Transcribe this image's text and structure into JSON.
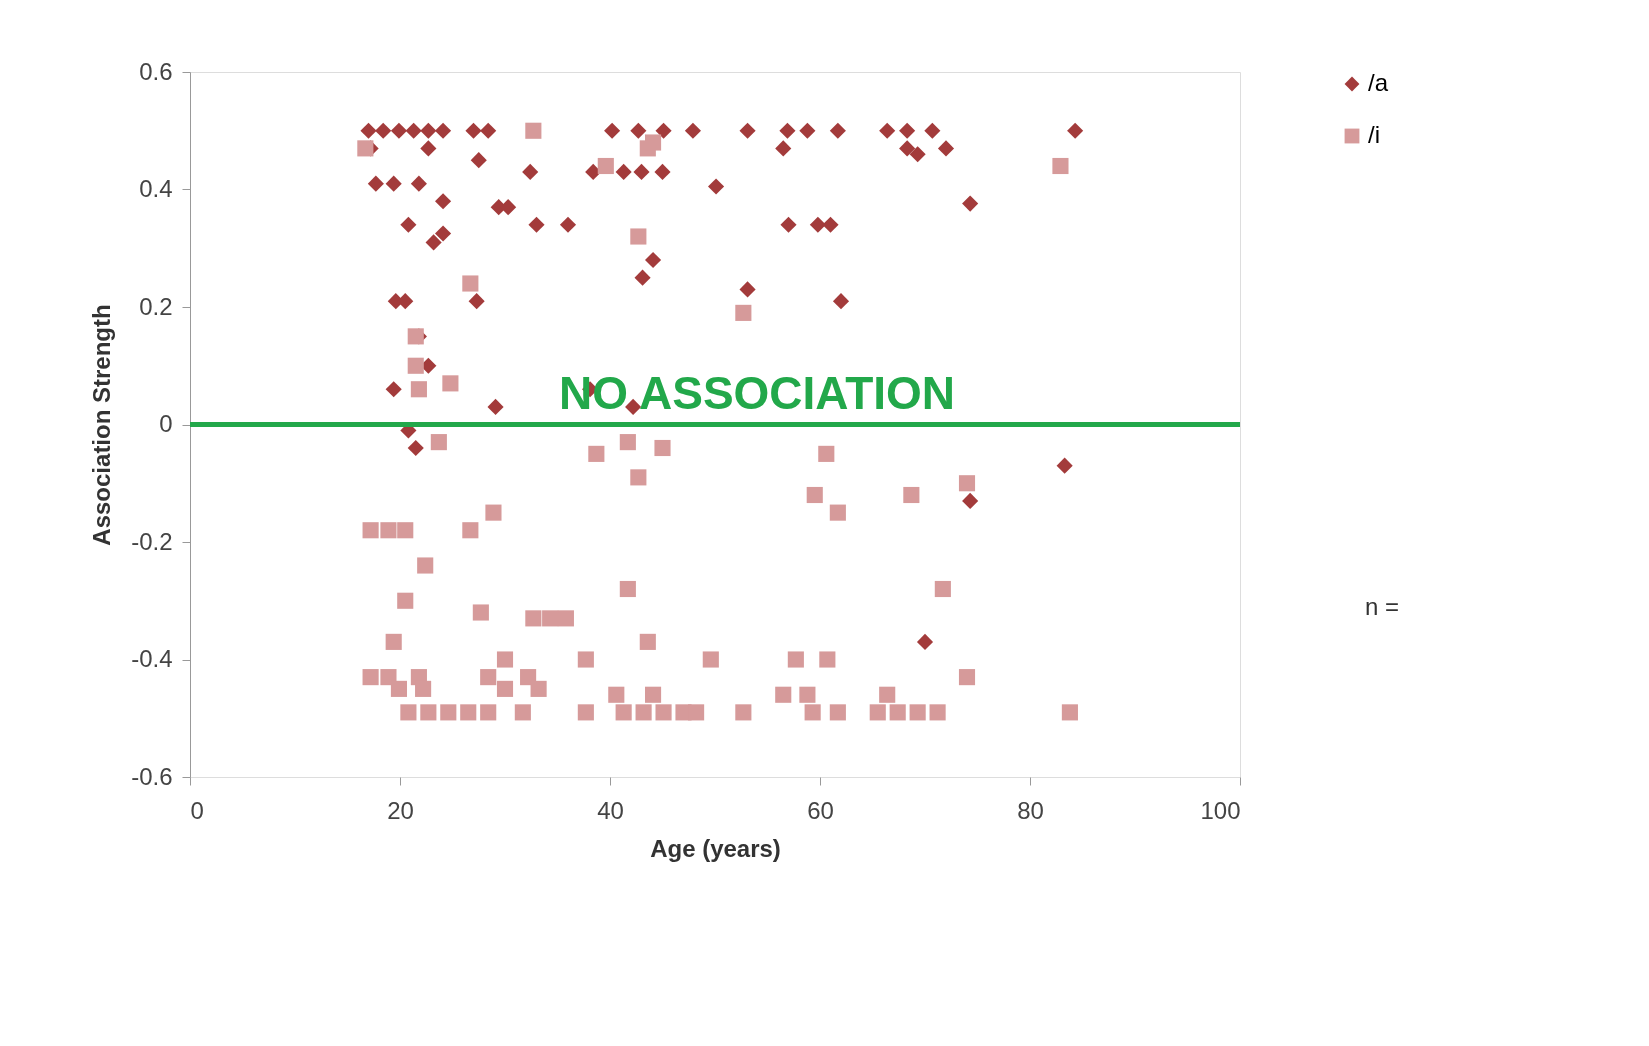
{
  "chart_data": {
    "type": "scatter",
    "xlabel": "Age (years)",
    "ylabel": "Association Strength",
    "xlim": [
      0,
      100
    ],
    "xticks": [
      0,
      20,
      40,
      60,
      80,
      100
    ],
    "ylim": [
      -0.6,
      0.6
    ],
    "yticks": [
      -0.6,
      -0.4,
      -0.2,
      0,
      0.2,
      0.4,
      0.6
    ],
    "grid": false,
    "legend": "right",
    "annotations": [
      "n ="
    ],
    "ref_lines": [
      {
        "axis": "y",
        "value": 0,
        "label": "NO ASSOCIATION",
        "color": "#22a84a"
      }
    ],
    "series": [
      {
        "name": "/a",
        "color": "#a33b3b",
        "marker": "diamond",
        "x": [
          17.0,
          18.4,
          19.9,
          21.3,
          22.7,
          24.1,
          27.0,
          28.4,
          40.2,
          42.7,
          45.1,
          47.9,
          53.1,
          56.9,
          58.8,
          61.7,
          66.4,
          68.3,
          70.7,
          84.3,
          17.2,
          22.7,
          27.5,
          32.4,
          38.4,
          41.3,
          43.0,
          45.0,
          56.5,
          68.3,
          72.0,
          69.3,
          17.7,
          19.4,
          21.8,
          50.1,
          74.3,
          24.1,
          29.4,
          30.3,
          20.8,
          24.1,
          23.2,
          33.0,
          36.0,
          57.0,
          59.8,
          61.0,
          44.1,
          43.1,
          53.1,
          19.6,
          20.5,
          27.3,
          62.0,
          21.8,
          22.7,
          19.4,
          38.1,
          29.1,
          42.2,
          20.8,
          21.5,
          83.3,
          74.3,
          70.0
        ],
        "values": [
          0.5,
          0.5,
          0.5,
          0.5,
          0.5,
          0.5,
          0.5,
          0.5,
          0.5,
          0.5,
          0.5,
          0.5,
          0.5,
          0.5,
          0.5,
          0.5,
          0.5,
          0.5,
          0.5,
          0.5,
          0.47,
          0.47,
          0.45,
          0.43,
          0.43,
          0.43,
          0.43,
          0.43,
          0.47,
          0.47,
          0.47,
          0.46,
          0.41,
          0.41,
          0.41,
          0.405,
          0.376,
          0.38,
          0.37,
          0.37,
          0.34,
          0.325,
          0.31,
          0.34,
          0.34,
          0.34,
          0.34,
          0.34,
          0.28,
          0.25,
          0.23,
          0.21,
          0.21,
          0.21,
          0.21,
          0.15,
          0.1,
          0.06,
          0.06,
          0.03,
          0.03,
          -0.01,
          -0.04,
          -0.07,
          -0.13,
          -0.37
        ]
      },
      {
        "name": "/i",
        "color": "#d69a9a",
        "marker": "square",
        "x": [
          32.7,
          16.7,
          43.6,
          44.1,
          39.6,
          82.9,
          42.7,
          26.7,
          52.7,
          21.5,
          21.5,
          24.8,
          21.8,
          23.7,
          41.7,
          38.7,
          60.6,
          42.7,
          45.0,
          74.0,
          59.5,
          68.7,
          61.7,
          28.9,
          26.7,
          17.2,
          18.9,
          20.5,
          22.4,
          41.7,
          71.7,
          20.5,
          27.7,
          32.7,
          34.3,
          35.8,
          19.4,
          43.6,
          30.0,
          37.7,
          49.6,
          57.7,
          60.7,
          17.2,
          18.9,
          21.8,
          28.4,
          32.2,
          74.0,
          19.9,
          22.2,
          30.0,
          33.2,
          40.6,
          44.1,
          56.5,
          58.8,
          20.8,
          22.7,
          24.6,
          26.5,
          28.4,
          31.7,
          37.7,
          41.3,
          43.2,
          45.1,
          47.0,
          48.2,
          52.7,
          59.3,
          61.7,
          65.5,
          67.4,
          69.3,
          71.2,
          83.8,
          66.4
        ],
        "values": [
          0.5,
          0.47,
          0.47,
          0.48,
          0.44,
          0.44,
          0.32,
          0.24,
          0.19,
          0.15,
          0.1,
          0.07,
          0.06,
          -0.03,
          -0.03,
          -0.05,
          -0.05,
          -0.09,
          -0.04,
          -0.1,
          -0.12,
          -0.12,
          -0.15,
          -0.15,
          -0.18,
          -0.18,
          -0.18,
          -0.18,
          -0.24,
          -0.28,
          -0.28,
          -0.3,
          -0.32,
          -0.33,
          -0.33,
          -0.33,
          -0.37,
          -0.37,
          -0.4,
          -0.4,
          -0.4,
          -0.4,
          -0.4,
          -0.43,
          -0.43,
          -0.43,
          -0.43,
          -0.43,
          -0.43,
          -0.45,
          -0.45,
          -0.45,
          -0.45,
          -0.46,
          -0.46,
          -0.46,
          -0.46,
          -0.49,
          -0.49,
          -0.49,
          -0.49,
          -0.49,
          -0.49,
          -0.49,
          -0.49,
          -0.49,
          -0.49,
          -0.49,
          -0.49,
          -0.49,
          -0.49,
          -0.49,
          -0.49,
          -0.49,
          -0.49,
          -0.49,
          -0.49,
          -0.46
        ]
      }
    ]
  }
}
